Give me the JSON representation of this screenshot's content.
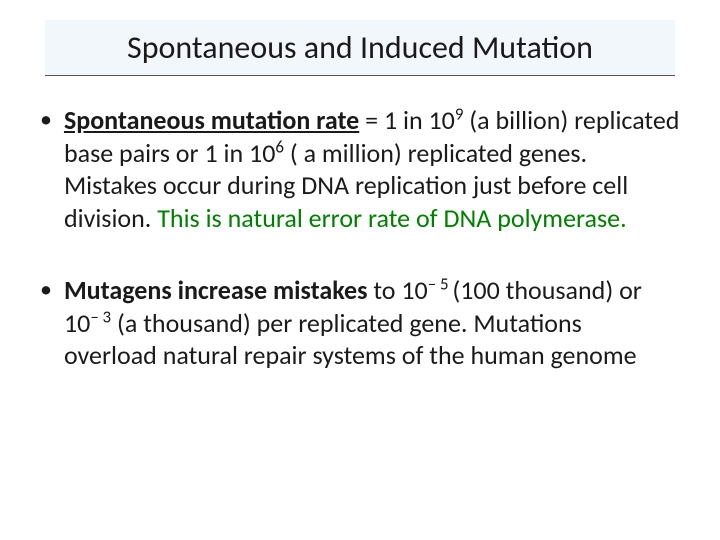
{
  "title": "Spontaneous and Induced Mutation",
  "bullet1": {
    "bold_underline": "Spontaneous mutation rate",
    "part1": " = 1 in 10",
    "sup1": "9",
    "part2": " (a billion) replicated base pairs or 1 in 10",
    "sup2": "6",
    "part3": " ( a million) replicated genes. Mistakes occur during DNA replication just before cell division. ",
    "green_part": " This is natural error rate of DNA polymerase."
  },
  "bullet2": {
    "bold_part": "Mutagens increase mistakes",
    "part1": " to 10",
    "sup1": "– 5 ",
    "part2": "(100 thousand) or 10",
    "sup2": "– 3",
    "part3": " (a thousand) per replicated gene. Mutations overload natural repair systems of the human genome"
  },
  "colors": {
    "title_bg": "#f2f7fb",
    "text": "#1a1a1a",
    "green": "#008000"
  },
  "fonts": {
    "title_size": 32,
    "body_size": 26
  }
}
